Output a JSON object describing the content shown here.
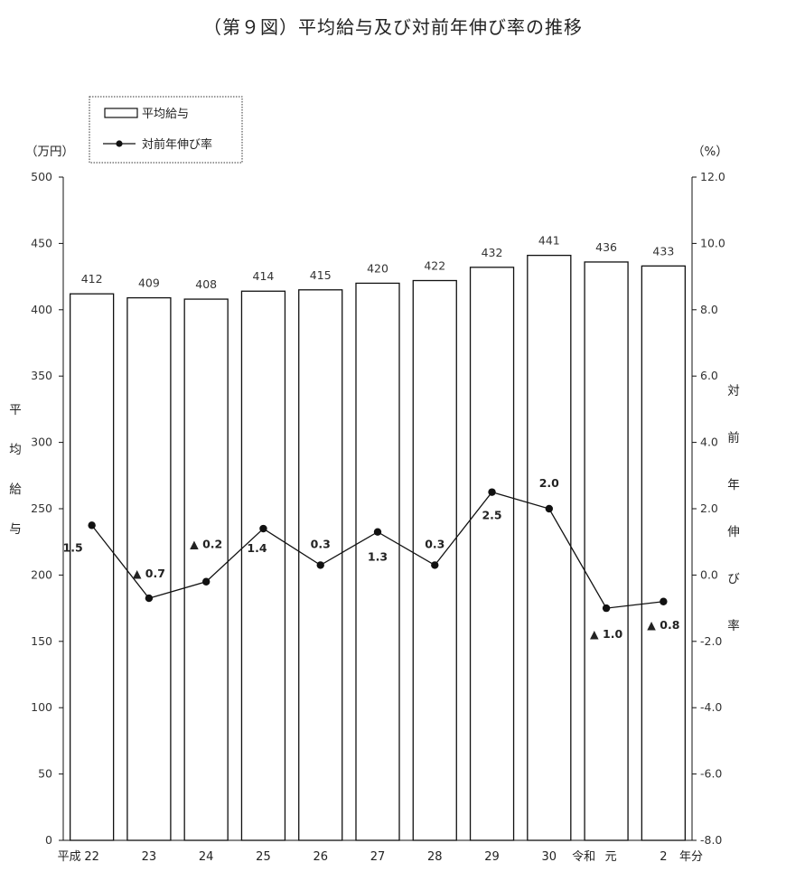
{
  "chart_data": {
    "type": "bar+line",
    "title": "（第９図）平均給与及び対前年伸び率の推移",
    "categories": [
      "22",
      "23",
      "24",
      "25",
      "26",
      "27",
      "28",
      "29",
      "30",
      "元",
      "2"
    ],
    "era_labels": [
      {
        "text": "平成",
        "before_category": "22"
      },
      {
        "text": "令和",
        "before_category": "元"
      }
    ],
    "x_unit_label": "年分",
    "series": [
      {
        "name": "平均給与",
        "type": "bar",
        "axis": "left",
        "values": [
          412,
          409,
          408,
          414,
          415,
          420,
          422,
          432,
          441,
          436,
          433
        ],
        "labels": [
          "412",
          "409",
          "408",
          "414",
          "415",
          "420",
          "422",
          "432",
          "441",
          "436",
          "433"
        ]
      },
      {
        "name": "対前年伸び率",
        "type": "line",
        "axis": "right",
        "values": [
          1.5,
          -0.7,
          -0.2,
          1.4,
          0.3,
          1.3,
          0.3,
          2.5,
          2.0,
          -1.0,
          -0.8
        ],
        "labels": [
          "1.5",
          "▲ 0.7",
          "▲ 0.2",
          "1.4",
          "0.3",
          "1.3",
          "0.3",
          "2.5",
          "2.0",
          "▲ 1.0",
          "▲ 0.8"
        ]
      }
    ],
    "left_axis": {
      "unit_label": "（万円）",
      "title": "平均給与",
      "ylim": [
        0,
        500
      ],
      "ticks": [
        "0",
        "50",
        "100",
        "150",
        "200",
        "250",
        "300",
        "350",
        "400",
        "450",
        "500"
      ]
    },
    "right_axis": {
      "unit_label": "（%）",
      "title": "対前年伸び率",
      "ylim": [
        -8,
        12
      ],
      "ticks": [
        "-8.0",
        "-6.0",
        "-4.0",
        "-2.0",
        "0.0",
        "2.0",
        "4.0",
        "6.0",
        "8.0",
        "10.0",
        "12.0"
      ]
    },
    "legend": {
      "placement": "top-left",
      "items": [
        "平均給与",
        "対前年伸び率"
      ]
    },
    "grid": false
  }
}
